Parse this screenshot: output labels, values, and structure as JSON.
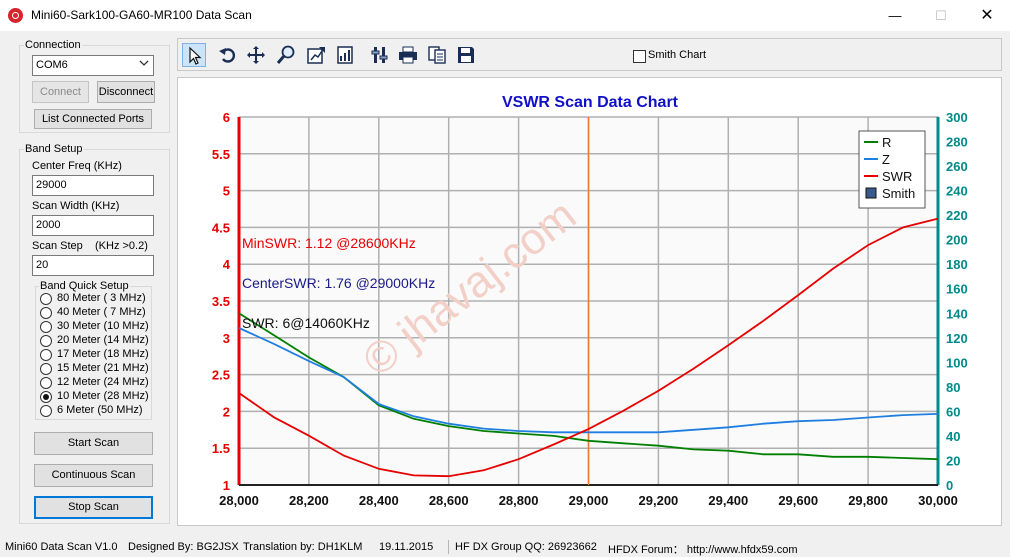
{
  "window": {
    "title": "Mini60-Sark100-GA60-MR100 Data Scan",
    "min_glyph": "—",
    "max_glyph": "☐",
    "close_glyph": "✕"
  },
  "connection": {
    "legend": "Connection",
    "port": "COM6",
    "connect_label": "Connect",
    "disconnect_label": "Disconnect",
    "list_ports_label": "List Connected Ports"
  },
  "band_setup": {
    "legend": "Band Setup",
    "center_freq_label": "Center Freq  (KHz)",
    "center_freq": "29000",
    "scan_width_label": "Scan Width   (KHz)",
    "scan_width": "2000",
    "scan_step_label": "Scan Step",
    "scan_step_hint": "(KHz >0.2)",
    "scan_step": "20",
    "quick_legend": "Band Quick Setup",
    "bands": [
      {
        "label": "80 Meter  (  3 MHz)",
        "checked": false
      },
      {
        "label": "40 Meter  (  7 MHz)",
        "checked": false
      },
      {
        "label": "30 Meter  (10 MHz)",
        "checked": false
      },
      {
        "label": "20 Meter  (14 MHz)",
        "checked": false
      },
      {
        "label": "17 Meter  (18 MHz)",
        "checked": false
      },
      {
        "label": "15 Meter  (21 MHz)",
        "checked": false
      },
      {
        "label": "12 Meter  (24 MHz)",
        "checked": false
      },
      {
        "label": "10 Meter  (28 MHz)",
        "checked": true
      },
      {
        "label": "6 Meter   (50 MHz)",
        "checked": false
      }
    ],
    "start_label": "Start Scan",
    "continuous_label": "Continuous Scan",
    "stop_label": "Stop Scan"
  },
  "toolbar": {
    "icons": [
      "pointer-icon",
      "undo-icon",
      "pan-icon",
      "zoom-icon",
      "export-icon",
      "chart-data-icon",
      "settings-icon",
      "print-icon",
      "copy-icon",
      "save-icon"
    ],
    "smith_chart_label": "Smith Chart",
    "smith_chart_checked": false
  },
  "chart_data": {
    "type": "line",
    "title": "VSWR Scan Data Chart",
    "x_ticks": [
      "28,000",
      "28,200",
      "28,400",
      "28,600",
      "28,800",
      "29,000",
      "29,200",
      "29,400",
      "29,600",
      "29,800",
      "30,000"
    ],
    "xlim": [
      28000,
      30000
    ],
    "y_left_ticks": [
      "1",
      "1.5",
      "2",
      "2.5",
      "3",
      "3.5",
      "4",
      "4.5",
      "5",
      "5.5",
      "6"
    ],
    "ylim_left": [
      1,
      6
    ],
    "y_right_ticks": [
      "0",
      "20",
      "40",
      "60",
      "80",
      "100",
      "120",
      "140",
      "160",
      "180",
      "200",
      "220",
      "240",
      "260",
      "280",
      "300"
    ],
    "ylim_right": [
      0,
      300
    ],
    "grid": true,
    "legend_position": "top-right",
    "legend": [
      "R",
      "Z",
      "SWR",
      "Smith"
    ],
    "cursor_x": 29000,
    "annotations": {
      "min_swr": "MinSWR: 1.12 @28600KHz",
      "center_swr": "CenterSWR: 1.76 @29000KHz",
      "swr_cursor": "SWR: 6@14060KHz"
    },
    "watermark": "© jhavaj.com",
    "colors": {
      "R": "#008000",
      "Z": "#1e7fe0",
      "SWR": "#e60000",
      "cursor": "#f07830",
      "left_axis": "#e60000",
      "right_axis": "#008b8b",
      "title": "#1010c8"
    },
    "x": [
      28000,
      28100,
      28200,
      28300,
      28400,
      28500,
      28600,
      28700,
      28800,
      28900,
      29000,
      29100,
      29200,
      29300,
      29400,
      29500,
      29600,
      29700,
      29800,
      29900,
      30000
    ],
    "series": [
      {
        "name": "R",
        "axis": "right",
        "values": [
          140,
          122,
          104,
          88,
          65,
          54,
          48,
          44,
          42,
          40,
          36,
          34,
          32,
          29,
          28,
          25,
          25,
          23,
          23,
          22,
          21
        ]
      },
      {
        "name": "Z",
        "axis": "right",
        "values": [
          128,
          115,
          101,
          88,
          66,
          56,
          50,
          46,
          44,
          43,
          43,
          43,
          43,
          45,
          47,
          50,
          52,
          53,
          55,
          57,
          58
        ]
      },
      {
        "name": "SWR",
        "axis": "left",
        "values": [
          2.25,
          1.92,
          1.67,
          1.4,
          1.22,
          1.13,
          1.12,
          1.2,
          1.35,
          1.55,
          1.76,
          2.01,
          2.28,
          2.58,
          2.9,
          3.23,
          3.58,
          3.94,
          4.26,
          4.5,
          4.62
        ]
      }
    ]
  },
  "status": {
    "version": "Mini60 Data Scan V1.0",
    "designed": "Designed By: BG2JSX",
    "translation": "Translation by: DH1KLM",
    "date": "19.11.2015",
    "qq": "HF DX Group QQ: 26923662",
    "forum": "HFDX Forum：  http://www.hfdx59.com"
  }
}
